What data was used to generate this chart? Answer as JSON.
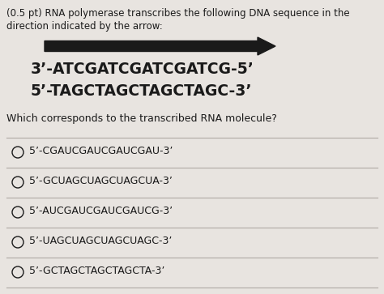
{
  "bg_color": "#e8e4e0",
  "header_text_line1": "(0.5 pt) RNA polymerase transcribes the following DNA sequence in the",
  "header_text_line2": "direction indicated by the arrow:",
  "dna_line1": "3’-ATCGATCGATCGATCG-5’",
  "dna_line2": "5’-TAGCTAGCTAGCTAGC-3’",
  "question_text": "Which corresponds to the transcribed RNA molecule?",
  "options": [
    "5’-CGAUCGAUCGAUCGAU-3’",
    "5’-GCUAGCUAGCUAGCUA-3’",
    "5’-AUCGAUCGAUCGAUCG-3’",
    "5’-UAGCUAGCUAGCUAGC-3’",
    "5’-GCTAGCTAGCTAGCTA-3’"
  ],
  "header_fontsize": 8.5,
  "dna_fontsize": 13.5,
  "question_fontsize": 9.0,
  "option_fontsize": 9.0,
  "arrow_color": "#1a1a1a",
  "text_color": "#1a1a1a",
  "divider_color": "#b0aaa5"
}
